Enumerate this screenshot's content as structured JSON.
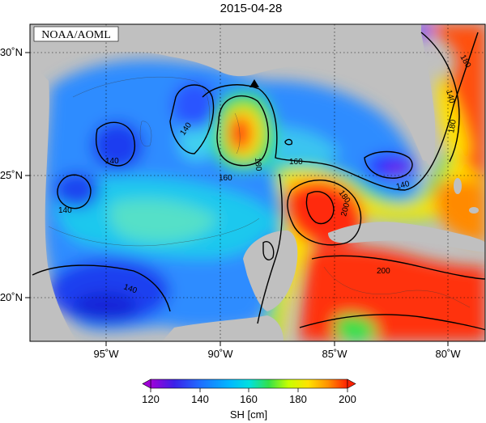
{
  "title": "2015-04-28",
  "source_label": "NOAA/AOML",
  "map": {
    "lon_range": [
      -98,
      -78
    ],
    "lat_range": [
      18,
      31
    ],
    "lon_ticks": [
      "95˚W",
      "90˚W",
      "85˚W",
      "80˚W"
    ],
    "lat_ticks": [
      "30˚N",
      "25˚N",
      "20˚N"
    ],
    "land_color": "#c0c0c0",
    "marker": "triangle-marker"
  },
  "contour_labels": [
    "140",
    "140",
    "140",
    "180",
    "160",
    "160",
    "180",
    "200",
    "140",
    "140",
    "200",
    "180",
    "140",
    "180"
  ],
  "colorbar": {
    "label": "SH [cm]",
    "ticks": [
      "120",
      "140",
      "160",
      "180",
      "200"
    ],
    "min": 120,
    "max": 200,
    "colors": [
      "#a000d8",
      "#3b20e8",
      "#1f6dff",
      "#00b7ff",
      "#00e0e0",
      "#33e04a",
      "#c7ff00",
      "#ffe200",
      "#ff9100",
      "#ff2000"
    ]
  }
}
